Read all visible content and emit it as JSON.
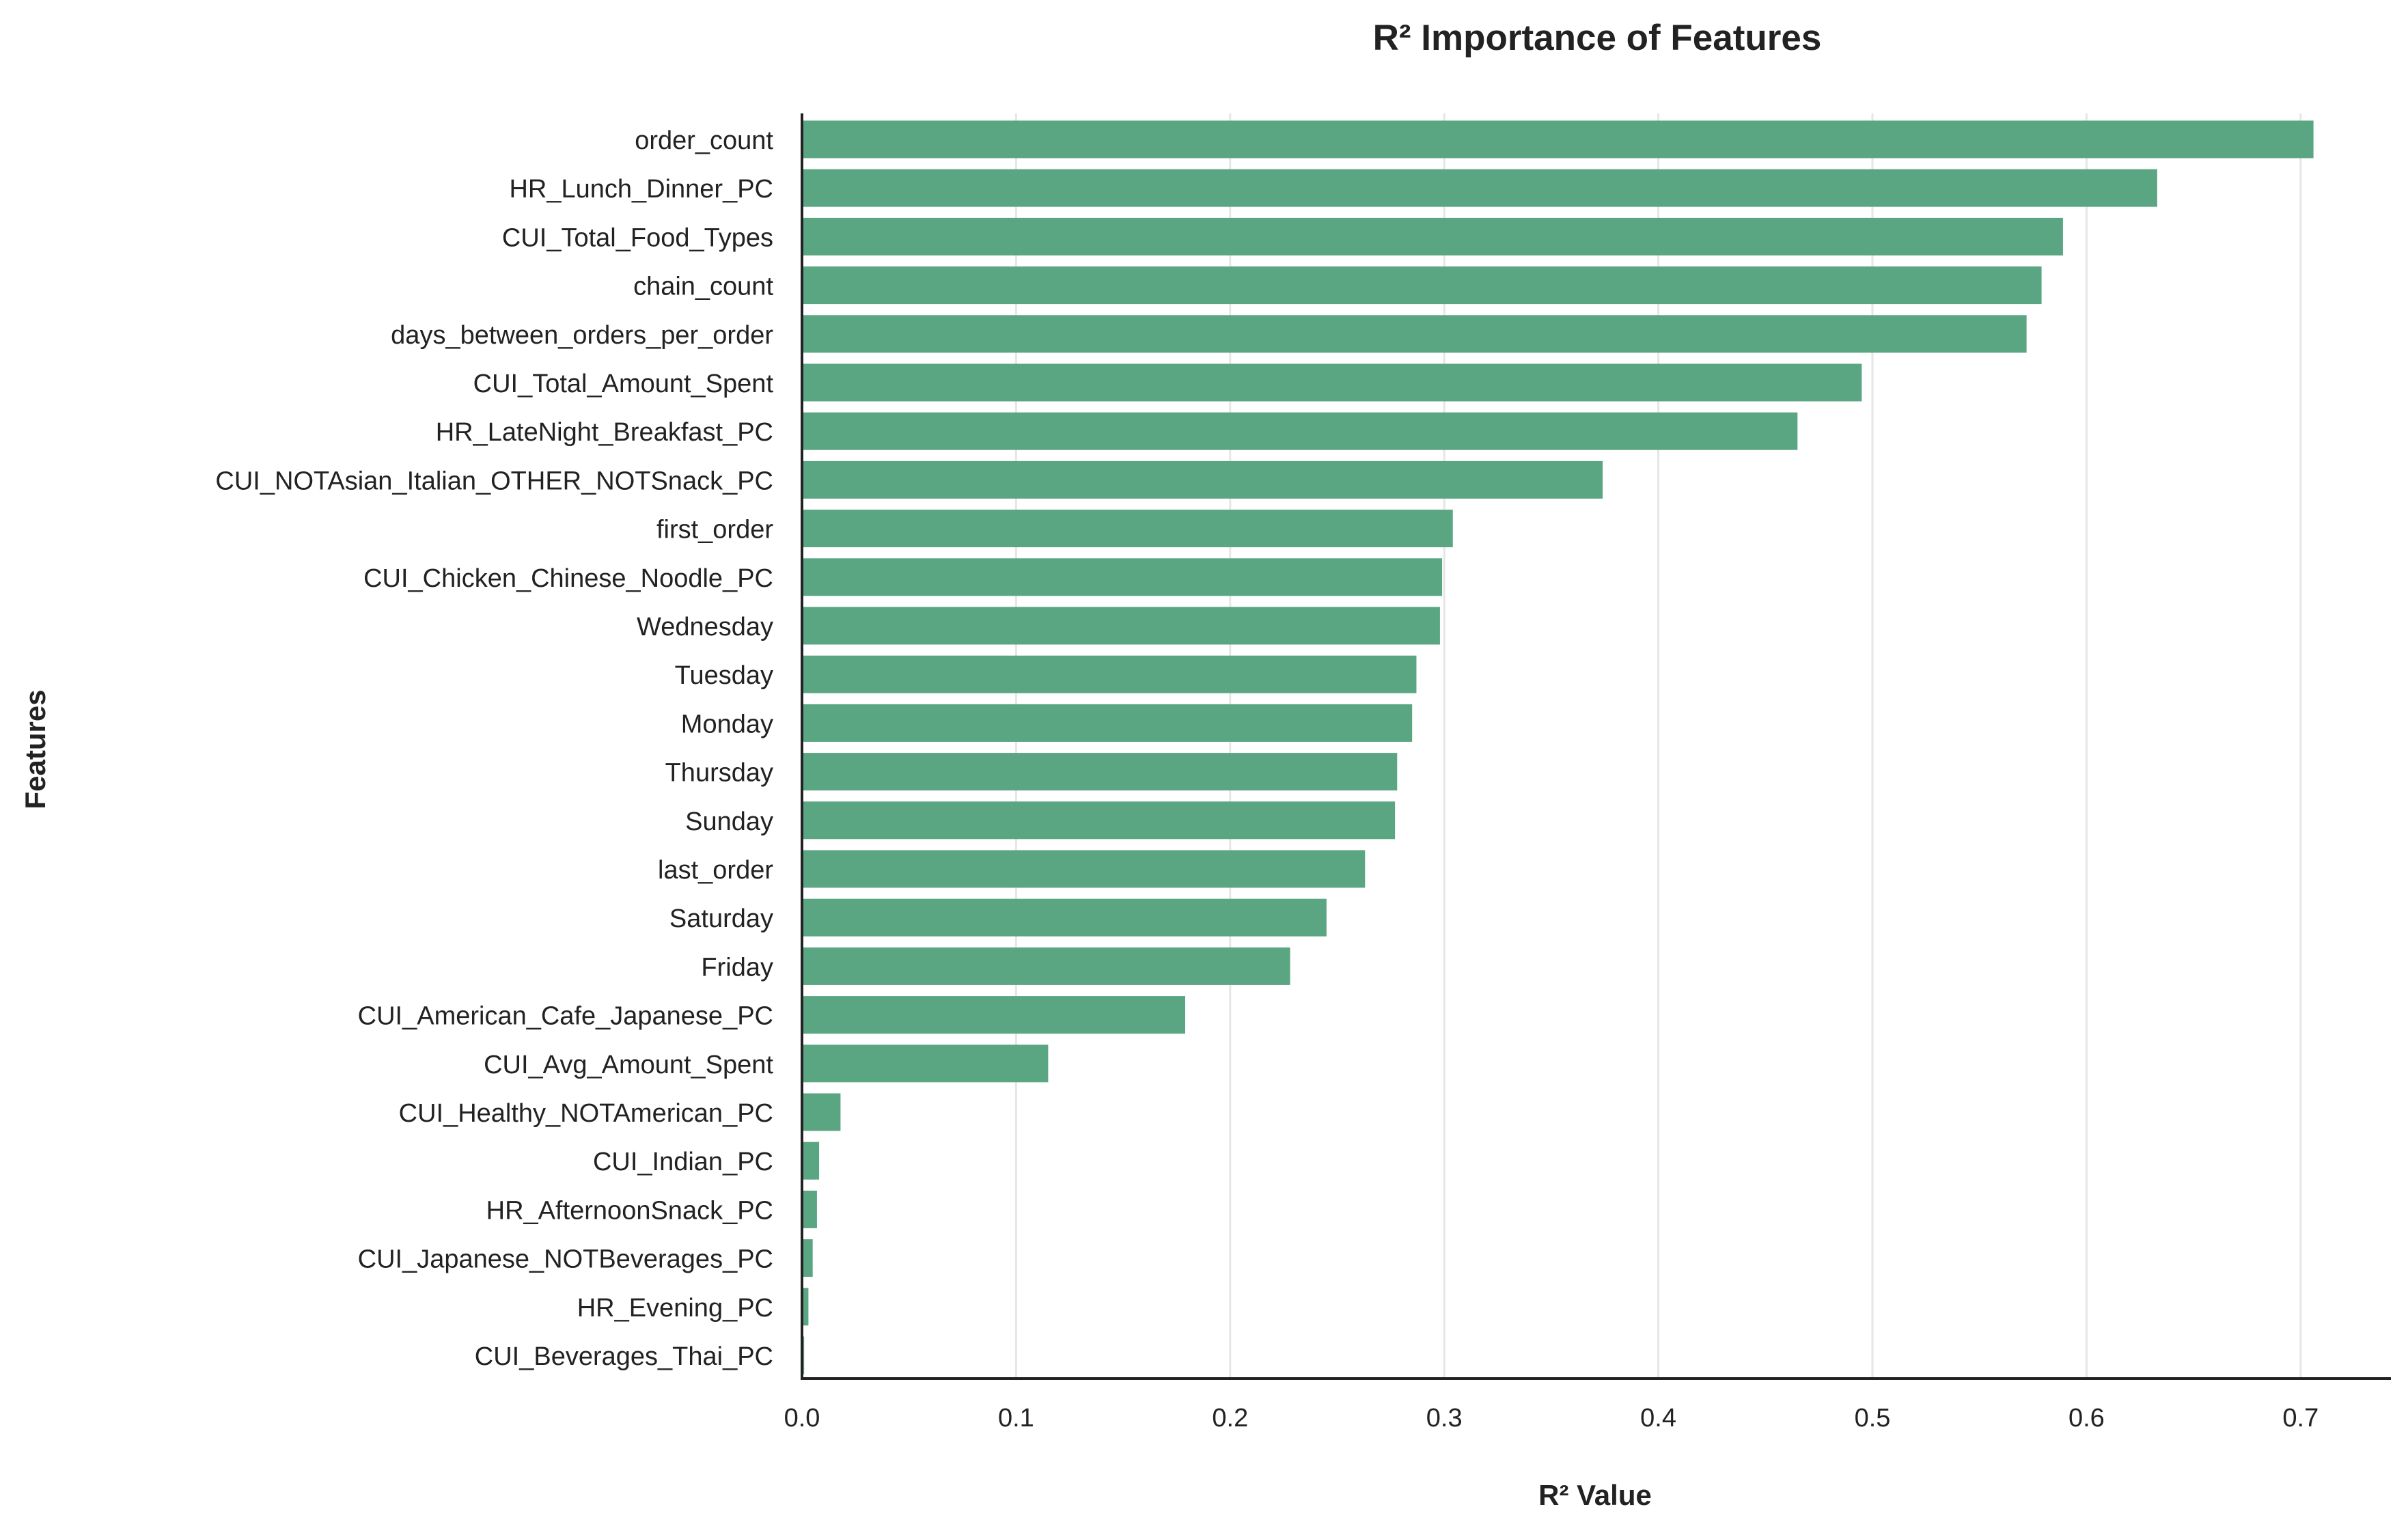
{
  "chart_data": {
    "type": "bar",
    "orientation": "horizontal",
    "title": "R² Importance of Features",
    "xlabel": "R² Value",
    "ylabel": "Features",
    "xlim": [
      0,
      0.742
    ],
    "xticks": [
      "0.0",
      "0.1",
      "0.2",
      "0.3",
      "0.4",
      "0.5",
      "0.6",
      "0.7"
    ],
    "grid": "vertical",
    "legend": "none",
    "bar_color": "#5aa582",
    "categories": [
      "order_count",
      "HR_Lunch_Dinner_PC",
      "CUI_Total_Food_Types",
      "chain_count",
      "days_between_orders_per_order",
      "CUI_Total_Amount_Spent",
      "HR_LateNight_Breakfast_PC",
      "CUI_NOTAsian_Italian_OTHER_NOTSnack_PC",
      "first_order",
      "CUI_Chicken_Chinese_Noodle_PC",
      "Wednesday",
      "Tuesday",
      "Monday",
      "Thursday",
      "Sunday",
      "last_order",
      "Saturday",
      "Friday",
      "CUI_American_Cafe_Japanese_PC",
      "CUI_Avg_Amount_Spent",
      "CUI_Healthy_NOTAmerican_PC",
      "CUI_Indian_PC",
      "HR_AfternoonSnack_PC",
      "CUI_Japanese_NOTBeverages_PC",
      "HR_Evening_PC",
      "CUI_Beverages_Thai_PC"
    ],
    "values": [
      0.706,
      0.633,
      0.589,
      0.579,
      0.572,
      0.495,
      0.465,
      0.374,
      0.304,
      0.299,
      0.298,
      0.287,
      0.285,
      0.278,
      0.277,
      0.263,
      0.245,
      0.228,
      0.179,
      0.115,
      0.018,
      0.008,
      0.007,
      0.005,
      0.003,
      0.001
    ]
  }
}
